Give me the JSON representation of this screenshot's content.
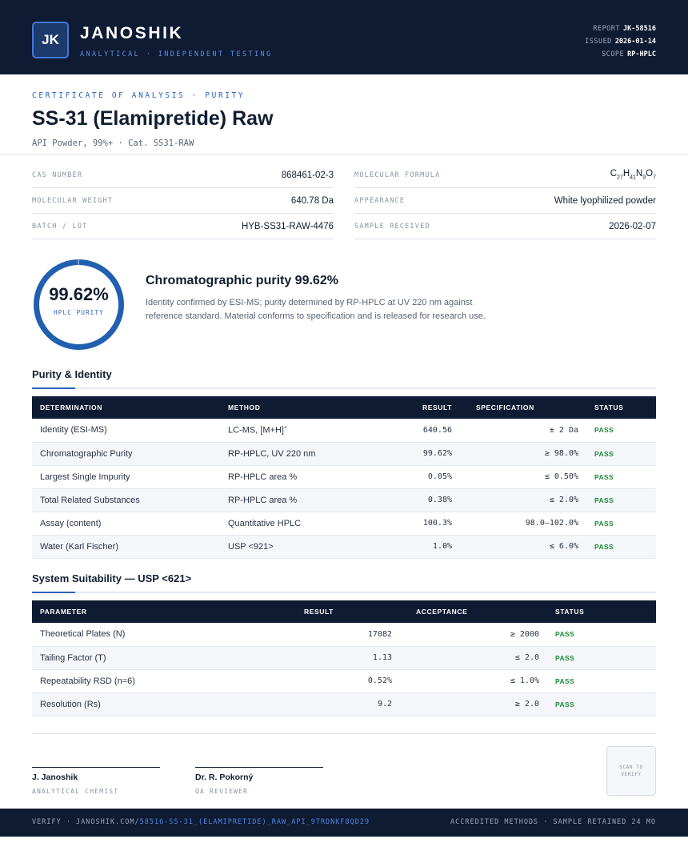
{
  "header": {
    "logo": "JK",
    "brand": "JANOSHIK",
    "tagline": "ANALYTICAL · INDEPENDENT TESTING",
    "report_label": "REPORT",
    "report_value": "JK-58516",
    "issued_label": "ISSUED",
    "issued_value": "2026-01-14",
    "scope_label": "SCOPE",
    "scope_value": "RP-HPLC"
  },
  "document": {
    "cert_label": "CERTIFICATE OF ANALYSIS · PURITY",
    "title": "SS-31 (Elamipretide) Raw",
    "subtitle": "API Powder, 99%+  ·  Cat. SS31-RAW"
  },
  "properties": {
    "cas_label": "CAS NUMBER",
    "cas_value": "868461-02-3",
    "formula_label": "MOLECULAR FORMULA",
    "formula_parts": [
      "C",
      "27",
      "H",
      "41",
      "N",
      "9",
      "O",
      "7"
    ],
    "mw_label": "MOLECULAR WEIGHT",
    "mw_value": "640.78 Da",
    "appearance_label": "APPEARANCE",
    "appearance_value": "White lyophilized powder",
    "batch_label": "BATCH / LOT",
    "batch_value": "HYB-SS31-RAW-4476",
    "received_label": "SAMPLE RECEIVED",
    "received_value": "2026-02-07"
  },
  "summary": {
    "purity_display": "99.62%",
    "purity_fraction": 0.9962,
    "ring_label": "HPLC PURITY",
    "title": "Chromatographic purity 99.62%",
    "text": "Identity confirmed by ESI-MS; purity determined by RP-HPLC at UV 220 nm against reference standard. Material conforms to specification and is released for research use."
  },
  "purity_section": {
    "title": "Purity & Identity",
    "headers": [
      "DETERMINATION",
      "METHOD",
      "RESULT",
      "SPECIFICATION",
      "STATUS"
    ],
    "rows": [
      [
        "Identity (ESI-MS)",
        "LC-MS, [M+H]+",
        "640.56",
        "± 2 Da",
        "PASS"
      ],
      [
        "Chromatographic Purity",
        "RP-HPLC, UV 220 nm",
        "99.62%",
        "≥ 98.0%",
        "PASS"
      ],
      [
        "Largest Single Impurity",
        "RP-HPLC area %",
        "0.05%",
        "≤ 0.50%",
        "PASS"
      ],
      [
        "Total Related Substances",
        "RP-HPLC area %",
        "0.38%",
        "≤ 2.0%",
        "PASS"
      ],
      [
        "Assay (content)",
        "Quantitative HPLC",
        "100.3%",
        "98.0–102.0%",
        "PASS"
      ],
      [
        "Water (Karl Fischer)",
        "USP <921>",
        "1.0%",
        "≤ 6.0%",
        "PASS"
      ]
    ]
  },
  "suitability_section": {
    "title": "System Suitability — USP <621>",
    "headers": [
      "PARAMETER",
      "RESULT",
      "ACCEPTANCE",
      "STATUS"
    ],
    "rows": [
      [
        "Theoretical Plates (N)",
        "17082",
        "≥ 2000",
        "PASS"
      ],
      [
        "Tailing Factor (T)",
        "1.13",
        "≤ 2.0",
        "PASS"
      ],
      [
        "Repeatability RSD (n=6)",
        "0.52%",
        "≤ 1.0%",
        "PASS"
      ],
      [
        "Resolution (Rs)",
        "9.2",
        "≥ 2.0",
        "PASS"
      ]
    ]
  },
  "signatures": [
    {
      "name": "J. Janoshik",
      "role": "ANALYTICAL CHEMIST"
    },
    {
      "name": "Dr. R. Pokorný",
      "role": "QA REVIEWER"
    }
  ],
  "qr": {
    "text": "SCAN TO VERIFY"
  },
  "footer": {
    "verify_prefix": "VERIFY · JANOSHIK.COM/",
    "verify_link": "58516-SS-31_(ELAMIPRETIDE)_RAW_API_9TRDNKF8QD29",
    "right": "ACCREDITED METHODS · SAMPLE RETAINED 24 MO"
  },
  "colors": {
    "navy": "#0f1b33",
    "accent": "#2b63b8",
    "pass": "#1f8a3a"
  }
}
